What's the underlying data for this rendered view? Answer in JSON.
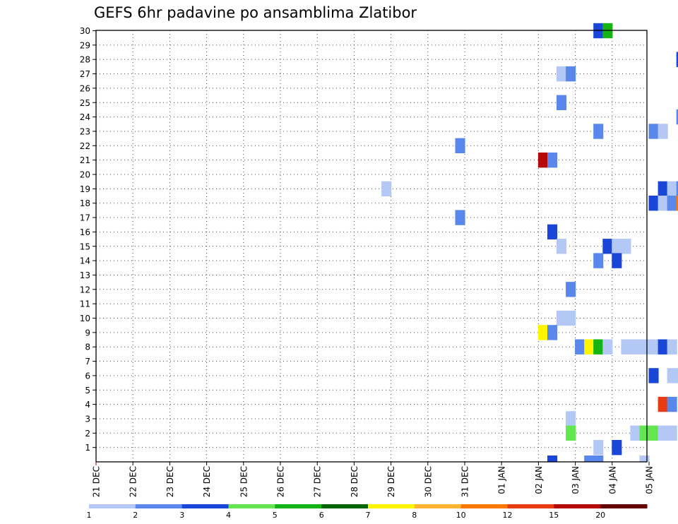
{
  "chart_data": {
    "type": "heatmap",
    "title": "GEFS 6hr padavine po ansamblima Zlatibor",
    "x_tick_labels": [
      "21 DEC",
      "22 DEC",
      "23 DEC",
      "24 DEC",
      "25 DEC",
      "26 DEC",
      "27 DEC",
      "28 DEC",
      "29 DEC",
      "30 DEC",
      "31 DEC",
      "01 JAN",
      "02 JAN",
      "03 JAN",
      "04 JAN",
      "05 JAN"
    ],
    "y_tick_labels": [
      "1",
      "2",
      "3",
      "4",
      "5",
      "6",
      "7",
      "8",
      "9",
      "10",
      "11",
      "12",
      "13",
      "14",
      "15",
      "16",
      "17",
      "18",
      "19",
      "20",
      "21",
      "22",
      "23",
      "24",
      "25",
      "26",
      "27",
      "28",
      "29",
      "30"
    ],
    "ylim": [
      0,
      30
    ],
    "grid": true,
    "colorbar": {
      "labels": [
        "1",
        "2",
        "3",
        "4",
        "5",
        "6",
        "7",
        "8",
        "10",
        "12",
        "15",
        "20"
      ],
      "colors": [
        "#b4c8f5",
        "#5a87eb",
        "#1946d7",
        "#64e650",
        "#14b414",
        "#006400",
        "#fff500",
        "#ffb432",
        "#fa7800",
        "#e63c14",
        "#b40a0a",
        "#640000"
      ]
    },
    "precip_cells": [
      {
        "x": 10,
        "y": 30,
        "c": 3
      },
      {
        "x": 11,
        "y": 30,
        "c": 5
      },
      {
        "x": 19,
        "y": 28,
        "c": 3
      },
      {
        "x": 20,
        "y": 28,
        "c": 4
      },
      {
        "x": 6,
        "y": 27,
        "c": 1
      },
      {
        "x": 7,
        "y": 27,
        "c": 2
      },
      {
        "x": 22,
        "y": 27,
        "c": 2
      },
      {
        "x": 6,
        "y": 25,
        "c": 2
      },
      {
        "x": 19,
        "y": 24,
        "c": 2
      },
      {
        "x": 20,
        "y": 24,
        "c": 7
      },
      {
        "x": 21,
        "y": 24,
        "c": 3
      },
      {
        "x": 26,
        "y": 24,
        "c": 1
      },
      {
        "x": 10,
        "y": 23,
        "c": 2
      },
      {
        "x": 16,
        "y": 23,
        "c": 2
      },
      {
        "x": 17,
        "y": 23,
        "c": 1
      },
      {
        "x": -5,
        "y": 22,
        "c": 2
      },
      {
        "x": 20,
        "y": 22,
        "c": 2
      },
      {
        "x": 22,
        "y": 22,
        "c": 5
      },
      {
        "x": 23,
        "y": 22,
        "c": 1
      },
      {
        "x": 4,
        "y": 21,
        "c": 11
      },
      {
        "x": 5,
        "y": 21,
        "c": 2
      },
      {
        "x": 21,
        "y": 20,
        "c": 1
      },
      {
        "x": 22,
        "y": 20,
        "c": 1
      },
      {
        "x": 24,
        "y": 20,
        "c": 8
      },
      {
        "x": 25,
        "y": 20,
        "c": 5
      },
      {
        "x": 28,
        "y": 20,
        "c": 3
      },
      {
        "x": 29,
        "y": 20,
        "c": 1
      },
      {
        "x": -13,
        "y": 19,
        "c": 1
      },
      {
        "x": 17,
        "y": 19,
        "c": 3
      },
      {
        "x": 18,
        "y": 19,
        "c": 1
      },
      {
        "x": 19,
        "y": 19,
        "c": 2
      },
      {
        "x": 20,
        "y": 19,
        "c": 8
      },
      {
        "x": 21,
        "y": 19,
        "c": 5
      },
      {
        "x": 22,
        "y": 19,
        "c": 6
      },
      {
        "x": 23,
        "y": 19,
        "c": 3
      },
      {
        "x": 24,
        "y": 19,
        "c": 3
      },
      {
        "x": 25,
        "y": 19,
        "c": 3
      },
      {
        "x": 26,
        "y": 19,
        "c": 5
      },
      {
        "x": 27,
        "y": 19,
        "c": 5
      },
      {
        "x": 28,
        "y": 19,
        "c": 1
      },
      {
        "x": 16,
        "y": 18,
        "c": 3
      },
      {
        "x": 17,
        "y": 18,
        "c": 1
      },
      {
        "x": 18,
        "y": 18,
        "c": 2
      },
      {
        "x": 19,
        "y": 18,
        "c": 9
      },
      {
        "x": 20,
        "y": 18,
        "c": 8
      },
      {
        "x": 21,
        "y": 18,
        "c": 5
      },
      {
        "x": 22,
        "y": 18,
        "c": 6
      },
      {
        "x": 23,
        "y": 18,
        "c": 3
      },
      {
        "x": 24,
        "y": 18,
        "c": 3
      },
      {
        "x": 25,
        "y": 18,
        "c": 3
      },
      {
        "x": 26,
        "y": 18,
        "c": 5
      },
      {
        "x": 27,
        "y": 18,
        "c": 5
      },
      {
        "x": 28,
        "y": 18,
        "c": 1
      },
      {
        "x": -5,
        "y": 17,
        "c": 2
      },
      {
        "x": 28,
        "y": 17,
        "c": 2
      },
      {
        "x": 5,
        "y": 16,
        "c": 3
      },
      {
        "x": 30,
        "y": 16,
        "c": 2
      },
      {
        "x": 31,
        "y": 16,
        "c": 11
      },
      {
        "x": 6,
        "y": 15,
        "c": 1
      },
      {
        "x": 11,
        "y": 15,
        "c": 3
      },
      {
        "x": 12,
        "y": 15,
        "c": 1
      },
      {
        "x": 13,
        "y": 15,
        "c": 1
      },
      {
        "x": 10,
        "y": 14,
        "c": 2
      },
      {
        "x": 12,
        "y": 14,
        "c": 3
      },
      {
        "x": 27,
        "y": 13,
        "c": 1
      },
      {
        "x": 28,
        "y": 13,
        "c": 1
      },
      {
        "x": 31,
        "y": 13,
        "c": 4
      },
      {
        "x": 7,
        "y": 12,
        "c": 2
      },
      {
        "x": 25,
        "y": 12,
        "c": 5
      },
      {
        "x": 26,
        "y": 12,
        "c": 1
      },
      {
        "x": 22,
        "y": 11,
        "c": 1
      },
      {
        "x": 25,
        "y": 11,
        "c": 6
      },
      {
        "x": 6,
        "y": 10,
        "c": 1
      },
      {
        "x": 7,
        "y": 10,
        "c": 1
      },
      {
        "x": 4,
        "y": 9,
        "c": 7
      },
      {
        "x": 5,
        "y": 9,
        "c": 2
      },
      {
        "x": 8,
        "y": 8,
        "c": 2
      },
      {
        "x": 9,
        "y": 8,
        "c": 7
      },
      {
        "x": 10,
        "y": 8,
        "c": 5
      },
      {
        "x": 11,
        "y": 8,
        "c": 1
      },
      {
        "x": 13,
        "y": 8,
        "c": 1
      },
      {
        "x": 14,
        "y": 8,
        "c": 1
      },
      {
        "x": 15,
        "y": 8,
        "c": 1
      },
      {
        "x": 16,
        "y": 8,
        "c": 1
      },
      {
        "x": 17,
        "y": 8,
        "c": 3
      },
      {
        "x": 18,
        "y": 8,
        "c": 1
      },
      {
        "x": 27,
        "y": 8,
        "c": 1
      },
      {
        "x": 28,
        "y": 8,
        "c": 1
      },
      {
        "x": 16,
        "y": 6,
        "c": 3
      },
      {
        "x": 18,
        "y": 6,
        "c": 1
      },
      {
        "x": 19,
        "y": 6,
        "c": 1
      },
      {
        "x": 17,
        "y": 4,
        "c": 10
      },
      {
        "x": 18,
        "y": 4,
        "c": 2
      },
      {
        "x": 20,
        "y": 4,
        "c": 1
      },
      {
        "x": 7,
        "y": 3,
        "c": 1
      },
      {
        "x": 7,
        "y": 2,
        "c": 4
      },
      {
        "x": 14,
        "y": 2,
        "c": 1
      },
      {
        "x": 15,
        "y": 2,
        "c": 4
      },
      {
        "x": 16,
        "y": 2,
        "c": 4
      },
      {
        "x": 17,
        "y": 2,
        "c": 1
      },
      {
        "x": 18,
        "y": 2,
        "c": 1
      },
      {
        "x": 10,
        "y": 1,
        "c": 1
      },
      {
        "x": 12,
        "y": 1,
        "c": 3
      },
      {
        "x": 5,
        "y": 0,
        "c": 3
      },
      {
        "x": 9,
        "y": 0,
        "c": 2
      },
      {
        "x": 10,
        "y": 0,
        "c": 2
      },
      {
        "x": 15,
        "y": 0,
        "c": 1
      }
    ]
  }
}
